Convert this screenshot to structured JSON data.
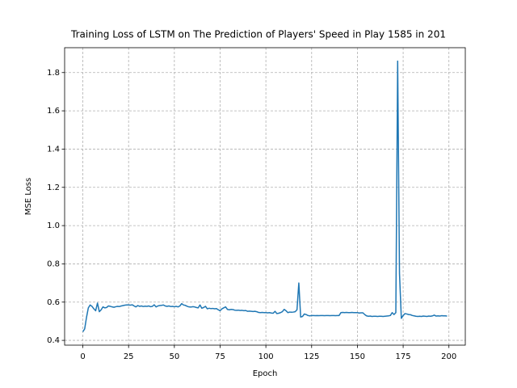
{
  "chart_data": {
    "type": "line",
    "title": "Training Loss of LSTM on The Prediction of Players' Speed in Play 1585 in 201",
    "x_label": "Epoch",
    "y_label": "MSE Loss",
    "x": [
      0,
      1,
      2,
      3,
      4,
      5,
      6,
      7,
      8,
      9,
      10,
      11,
      12,
      13,
      14,
      15,
      16,
      17,
      18,
      19,
      20,
      21,
      22,
      23,
      24,
      25,
      26,
      27,
      28,
      29,
      30,
      31,
      32,
      33,
      34,
      35,
      36,
      37,
      38,
      39,
      40,
      41,
      42,
      43,
      44,
      45,
      46,
      47,
      48,
      49,
      50,
      51,
      52,
      53,
      54,
      55,
      56,
      57,
      58,
      59,
      60,
      61,
      62,
      63,
      64,
      65,
      66,
      67,
      68,
      69,
      70,
      71,
      72,
      73,
      74,
      75,
      76,
      77,
      78,
      79,
      80,
      81,
      82,
      83,
      84,
      85,
      86,
      87,
      88,
      89,
      90,
      91,
      92,
      93,
      94,
      95,
      96,
      97,
      98,
      99,
      100,
      101,
      102,
      103,
      104,
      105,
      106,
      107,
      108,
      109,
      110,
      111,
      112,
      113,
      114,
      115,
      116,
      117,
      118,
      119,
      120,
      121,
      122,
      123,
      124,
      125,
      126,
      127,
      128,
      129,
      130,
      131,
      132,
      133,
      134,
      135,
      136,
      137,
      138,
      139,
      140,
      141,
      142,
      143,
      144,
      145,
      146,
      147,
      148,
      149,
      150,
      151,
      152,
      153,
      154,
      155,
      156,
      157,
      158,
      159,
      160,
      161,
      162,
      163,
      164,
      165,
      166,
      167,
      168,
      169,
      170,
      171,
      172,
      173,
      174,
      175,
      176,
      177,
      178,
      179,
      180,
      181,
      182,
      183,
      184,
      185,
      186,
      187,
      188,
      189,
      190,
      191,
      192,
      193,
      194,
      195,
      196,
      197,
      198,
      199
    ],
    "series": [
      {
        "name": "loss",
        "color": "#1f77b4",
        "values": [
          0.445,
          0.46,
          0.52,
          0.57,
          0.585,
          0.578,
          0.565,
          0.555,
          0.595,
          0.55,
          0.56,
          0.575,
          0.57,
          0.572,
          0.58,
          0.578,
          0.575,
          0.573,
          0.576,
          0.578,
          0.577,
          0.58,
          0.582,
          0.584,
          0.585,
          0.585,
          0.584,
          0.586,
          0.58,
          0.575,
          0.582,
          0.578,
          0.58,
          0.577,
          0.579,
          0.578,
          0.58,
          0.576,
          0.578,
          0.586,
          0.575,
          0.58,
          0.582,
          0.583,
          0.585,
          0.58,
          0.578,
          0.58,
          0.577,
          0.578,
          0.576,
          0.578,
          0.575,
          0.58,
          0.592,
          0.585,
          0.583,
          0.578,
          0.575,
          0.574,
          0.576,
          0.575,
          0.572,
          0.57,
          0.585,
          0.568,
          0.572,
          0.578,
          0.565,
          0.568,
          0.566,
          0.567,
          0.565,
          0.566,
          0.56,
          0.555,
          0.565,
          0.57,
          0.575,
          0.562,
          0.56,
          0.562,
          0.561,
          0.558,
          0.557,
          0.558,
          0.556,
          0.557,
          0.555,
          0.556,
          0.552,
          0.553,
          0.552,
          0.551,
          0.552,
          0.55,
          0.546,
          0.545,
          0.546,
          0.545,
          0.545,
          0.544,
          0.545,
          0.543,
          0.542,
          0.552,
          0.54,
          0.542,
          0.545,
          0.55,
          0.562,
          0.555,
          0.545,
          0.548,
          0.547,
          0.548,
          0.55,
          0.56,
          0.7,
          0.522,
          0.525,
          0.538,
          0.535,
          0.53,
          0.528,
          0.53,
          0.53,
          0.529,
          0.53,
          0.529,
          0.53,
          0.53,
          0.529,
          0.53,
          0.53,
          0.529,
          0.53,
          0.53,
          0.529,
          0.53,
          0.53,
          0.545,
          0.546,
          0.545,
          0.546,
          0.545,
          0.545,
          0.546,
          0.545,
          0.545,
          0.545,
          0.543,
          0.544,
          0.544,
          0.535,
          0.528,
          0.526,
          0.527,
          0.525,
          0.526,
          0.526,
          0.525,
          0.526,
          0.526,
          0.525,
          0.526,
          0.527,
          0.528,
          0.53,
          0.545,
          0.535,
          0.545,
          1.86,
          0.75,
          0.515,
          0.53,
          0.54,
          0.538,
          0.535,
          0.534,
          0.53,
          0.528,
          0.526,
          0.525,
          0.526,
          0.525,
          0.527,
          0.526,
          0.525,
          0.527,
          0.526,
          0.528,
          0.532,
          0.527,
          0.528,
          0.527,
          0.529,
          0.528,
          0.528,
          0.527
        ]
      }
    ],
    "xlim": [
      -9.95,
      208.95
    ],
    "xticks": [
      0,
      25,
      50,
      75,
      100,
      125,
      150,
      175,
      200
    ],
    "ylim": [
      0.375,
      1.93
    ],
    "yticks": [
      {
        "value": 0.4,
        "label": "0.4"
      },
      {
        "value": 0.6,
        "label": "0.6"
      },
      {
        "value": 0.8,
        "label": "0.8"
      },
      {
        "value": 1.0,
        "label": "1.0"
      },
      {
        "value": 1.2,
        "label": "1.2"
      },
      {
        "value": 1.4,
        "label": "1.4"
      },
      {
        "value": 1.6,
        "label": "1.6"
      },
      {
        "value": 1.8,
        "label": "1.8"
      }
    ],
    "grid": true
  }
}
